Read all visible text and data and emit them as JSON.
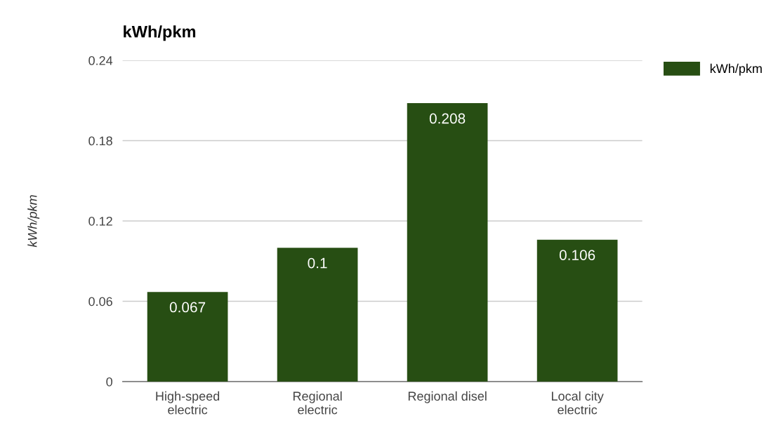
{
  "chart_data": {
    "type": "bar",
    "title": "kWh/pkm",
    "ylabel": "kWh/pkm",
    "categories": [
      "High-speed\nelectric",
      "Regional\nelectric",
      "Regional disel",
      "Local city\nelectric"
    ],
    "series": [
      {
        "name": "kWh/pkm",
        "color": "#274e13",
        "values": [
          0.067,
          0.1,
          0.208,
          0.106
        ]
      }
    ],
    "ylim": [
      0,
      0.24
    ],
    "yticks": [
      0,
      0.06,
      0.12,
      0.18,
      0.24
    ],
    "grid": "y",
    "legend": "top right",
    "data_labels": true
  }
}
